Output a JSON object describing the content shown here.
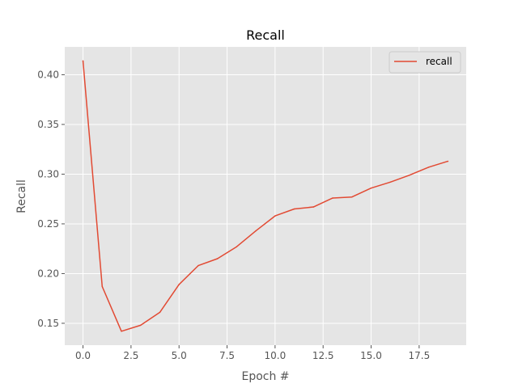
{
  "chart_data": {
    "type": "line",
    "title": "Recall",
    "xlabel": "Epoch #",
    "ylabel": "Recall",
    "xlim": [
      -0.95,
      19.95
    ],
    "ylim": [
      0.128,
      0.428
    ],
    "grid": true,
    "legend": "top-right",
    "x_ticks": [
      0.0,
      2.5,
      5.0,
      7.5,
      10.0,
      12.5,
      15.0,
      17.5
    ],
    "x_tick_labels": [
      "0.0",
      "2.5",
      "5.0",
      "7.5",
      "10.0",
      "12.5",
      "15.0",
      "17.5"
    ],
    "y_ticks": [
      0.15,
      0.2,
      0.25,
      0.3,
      0.35,
      0.4
    ],
    "y_tick_labels": [
      "0.15",
      "0.20",
      "0.25",
      "0.30",
      "0.35",
      "0.40"
    ],
    "x": [
      0,
      1,
      2,
      3,
      4,
      5,
      6,
      7,
      8,
      9,
      10,
      11,
      12,
      13,
      14,
      15,
      16,
      17,
      18,
      19
    ],
    "series": [
      {
        "name": "recall",
        "color": "#E24A33",
        "values": [
          0.414,
          0.187,
          0.142,
          0.148,
          0.161,
          0.189,
          0.208,
          0.215,
          0.227,
          0.243,
          0.258,
          0.265,
          0.267,
          0.276,
          0.277,
          0.286,
          0.292,
          0.299,
          0.307,
          0.313
        ]
      }
    ],
    "colors": {
      "plot_background": "#E5E5E5",
      "grid": "#FFFFFF",
      "tick_text": "#555555"
    }
  }
}
